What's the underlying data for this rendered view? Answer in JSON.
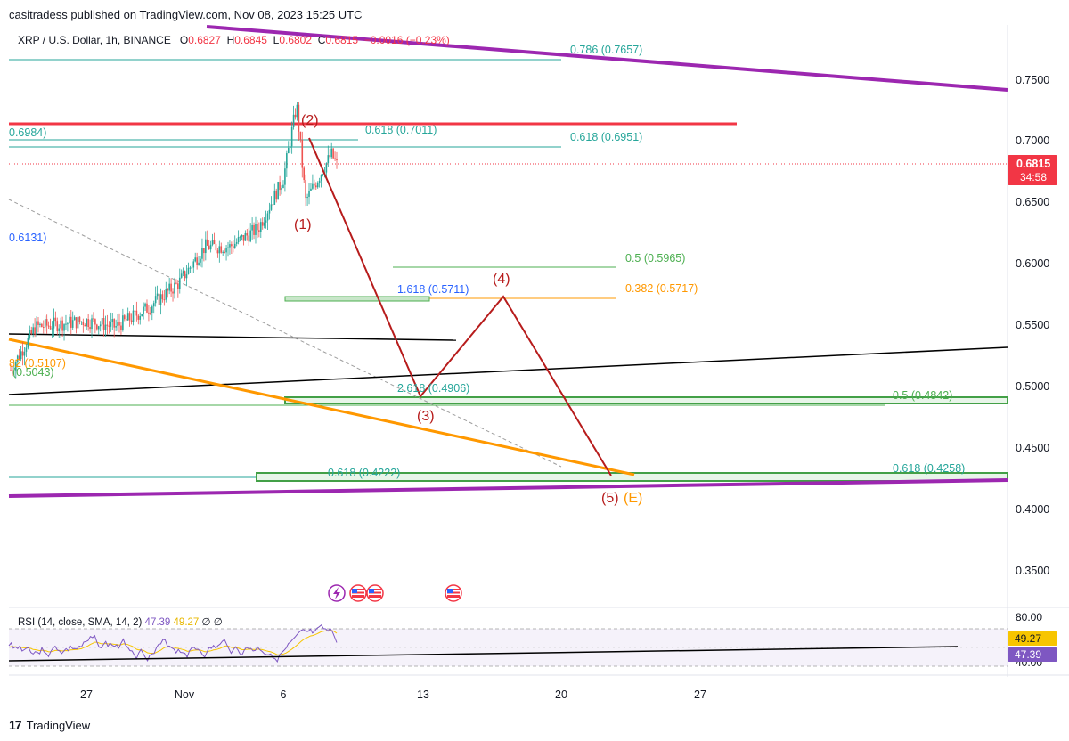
{
  "header": {
    "publisher": "casitradess published on TradingView.com, Nov 08, 2023 15:25 UTC"
  },
  "symbol_bar": {
    "title": "XRP / U.S. Dollar, 1h, BINANCE",
    "open_label": "O",
    "open": "0.6827",
    "high_label": "H",
    "high": "0.6845",
    "low_label": "L",
    "low": "0.6802",
    "close_label": "C",
    "close": "0.6815",
    "change": "−0.0016 (−0.23%)"
  },
  "price_badge": {
    "value": "0.6815",
    "countdown": "34:58",
    "color": "#f23645"
  },
  "rsi": {
    "legend": "RSI (14, close, SMA, 14, 2)",
    "value1": "47.39",
    "value2": "49.27",
    "extra1": "∅",
    "extra2": "∅",
    "axis_80": "80.00",
    "axis_40": "40.00",
    "badge_rsi": "49.27",
    "badge_ma": "47.39",
    "line_color": "#7e57c2",
    "ma_color": "#f7c500"
  },
  "footer": {
    "brand": "TradingView",
    "logo_text": "17"
  },
  "icons": [
    "lightning-event-icon",
    "us-flag-event-icon",
    "us-flag-event-icon",
    "us-flag-event-icon"
  ],
  "chart_data": {
    "type": "line",
    "series_kind": "candlestick",
    "price_axis_ticks": [
      "0.7500",
      "0.7000",
      "0.6500",
      "0.6000",
      "0.5500",
      "0.5000",
      "0.4500",
      "0.4000",
      "0.3500"
    ],
    "time_axis_ticks": [
      "27",
      "Nov",
      "6",
      "13",
      "20",
      "27"
    ],
    "ylim": [
      0.318,
      0.797
    ],
    "last_price": 0.6815,
    "price_path": [
      {
        "x": "Oct 24",
        "y": 0.515
      },
      {
        "x": "Oct 25",
        "y": 0.55
      },
      {
        "x": "Oct 27",
        "y": 0.555
      },
      {
        "x": "Oct 29",
        "y": 0.55
      },
      {
        "x": "Oct 30",
        "y": 0.565
      },
      {
        "x": "Nov 1",
        "y": 0.585
      },
      {
        "x": "Nov 2",
        "y": 0.615
      },
      {
        "x": "Nov 4",
        "y": 0.615
      },
      {
        "x": "Nov 5",
        "y": 0.63
      },
      {
        "x": "Nov 6",
        "y": 0.67
      },
      {
        "x": "Nov 7",
        "y": 0.73
      },
      {
        "x": "Nov 7",
        "y": 0.652
      },
      {
        "x": "Nov 8",
        "y": 0.69
      },
      {
        "x": "Nov 8",
        "y": 0.6815
      }
    ],
    "fib_labels": [
      {
        "text": "0.786 (0.7657)",
        "color": "#26a69a"
      },
      {
        "text": "0.618 (0.7011)",
        "color": "#26a69a"
      },
      {
        "text": "0.618 (0.6951)",
        "color": "#26a69a"
      },
      {
        "text": "0.6984)",
        "color": "#26a69a"
      },
      {
        "text": "0.6131)",
        "color": "#2962ff"
      },
      {
        "text": "0.5 (0.5965)",
        "color": "#4caf50"
      },
      {
        "text": "1.618 (0.5711)",
        "color": "#2962ff"
      },
      {
        "text": "0.382 (0.5717)",
        "color": "#ff9800"
      },
      {
        "text": "82 (0.5107)",
        "color": "#ff9800"
      },
      {
        "text": "(0.5043)",
        "color": "#4caf50"
      },
      {
        "text": "2.618 (0.4906)",
        "color": "#26a69a"
      },
      {
        "text": "0.5 (0.4842)",
        "color": "#4caf50"
      },
      {
        "text": "0.618 (0.4222)",
        "color": "#26a69a"
      },
      {
        "text": "0.618 (0.4258)",
        "color": "#26a69a"
      }
    ],
    "wave_labels": [
      {
        "text": "(1)",
        "color": "#b71c1c"
      },
      {
        "text": "(2)",
        "color": "#b71c1c"
      },
      {
        "text": "(3)",
        "color": "#b71c1c"
      },
      {
        "text": "(4)",
        "color": "#b71c1c"
      },
      {
        "text": "(5)",
        "color": "#b71c1c"
      },
      {
        "text": "(E)",
        "color": "#ff9800"
      }
    ],
    "projection_path": [
      {
        "x": "Nov 7",
        "y": 0.7
      },
      {
        "x": "Nov 13",
        "y": 0.491
      },
      {
        "x": "Nov 17",
        "y": 0.572
      },
      {
        "x": "Nov 23",
        "y": 0.426
      }
    ],
    "trendline_colors": {
      "upper": "#9c27b0",
      "lower": "#9c27b0",
      "orange": "#ff9800",
      "black": "#000000",
      "resistance": "#f23645",
      "projection": "#b71c1c"
    }
  }
}
